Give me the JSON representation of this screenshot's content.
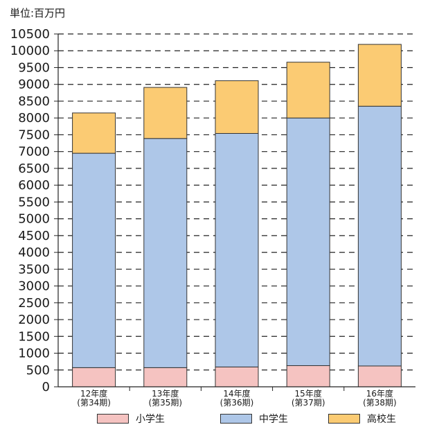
{
  "chart_data": {
    "type": "bar",
    "stacked": true,
    "unit_label": "単位:百万円",
    "categories": [
      [
        "12年度",
        "(第34期)"
      ],
      [
        "13年度",
        "(第35期)"
      ],
      [
        "14年度",
        "(第36期)"
      ],
      [
        "15年度",
        "(第37期)"
      ],
      [
        "16年度",
        "(第38期)"
      ]
    ],
    "series": [
      {
        "name": "小学生",
        "color": "#f5c3c1",
        "values": [
          570,
          570,
          590,
          630,
          620
        ]
      },
      {
        "name": "中学生",
        "color": "#aec7e8",
        "values": [
          6380,
          6820,
          6950,
          7370,
          7730
        ]
      },
      {
        "name": "高校生",
        "color": "#fbcb73",
        "values": [
          1200,
          1520,
          1570,
          1660,
          1840
        ]
      }
    ],
    "ylim": [
      0,
      10500
    ],
    "ytick_step": 500,
    "grid": true,
    "legend_position": "bottom"
  }
}
